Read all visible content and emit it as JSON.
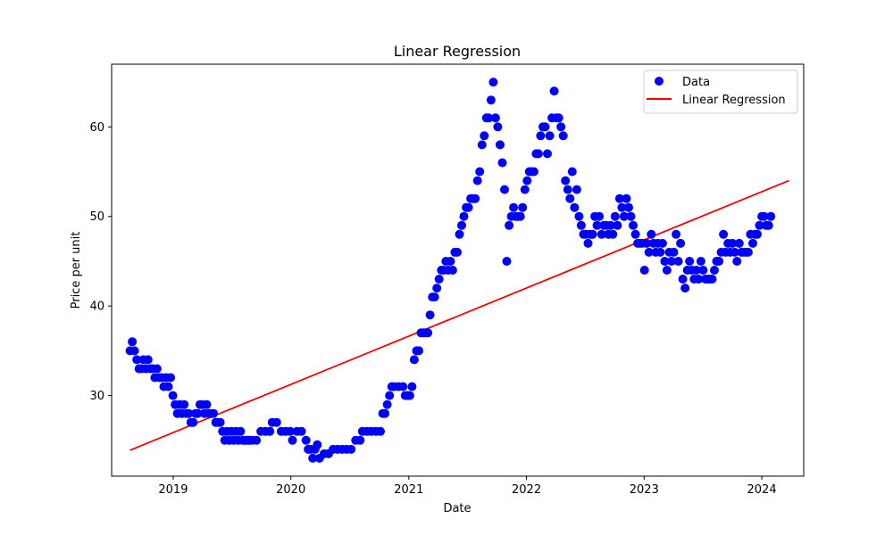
{
  "chart_data": {
    "type": "scatter",
    "title": "Linear Regression",
    "xlabel": "Date",
    "ylabel": "Price per unit",
    "xlim": [
      "2018-06-24",
      "2024-05-10"
    ],
    "ylim": [
      21,
      67
    ],
    "x_ticks": [
      {
        "value": "2019-01-01",
        "label": "2019"
      },
      {
        "value": "2020-01-01",
        "label": "2020"
      },
      {
        "value": "2021-01-01",
        "label": "2021"
      },
      {
        "value": "2022-01-01",
        "label": "2022"
      },
      {
        "value": "2023-01-01",
        "label": "2023"
      },
      {
        "value": "2024-01-01",
        "label": "2024"
      }
    ],
    "y_ticks": [
      30,
      40,
      50,
      60
    ],
    "grid": false,
    "legend": {
      "position": "top-right",
      "entries": [
        {
          "label": "Data",
          "kind": "marker",
          "color": "#0000ff"
        },
        {
          "label": "Linear Regression",
          "kind": "line",
          "color": "#ff0000"
        }
      ]
    },
    "series": [
      {
        "name": "Data",
        "kind": "scatter",
        "color": "#0000ff",
        "points": [
          [
            "2018-08-20",
            35
          ],
          [
            "2018-08-27",
            36
          ],
          [
            "2018-09-03",
            35
          ],
          [
            "2018-09-10",
            34
          ],
          [
            "2018-09-17",
            33
          ],
          [
            "2018-09-24",
            33
          ],
          [
            "2018-10-01",
            34
          ],
          [
            "2018-10-08",
            33
          ],
          [
            "2018-10-15",
            34
          ],
          [
            "2018-10-22",
            33
          ],
          [
            "2018-10-29",
            33
          ],
          [
            "2018-11-05",
            32
          ],
          [
            "2018-11-12",
            33
          ],
          [
            "2018-11-19",
            32
          ],
          [
            "2018-11-26",
            32
          ],
          [
            "2018-12-03",
            31
          ],
          [
            "2018-12-10",
            32
          ],
          [
            "2018-12-17",
            31
          ],
          [
            "2018-12-24",
            32
          ],
          [
            "2018-12-31",
            30
          ],
          [
            "2019-01-07",
            29
          ],
          [
            "2019-01-14",
            28
          ],
          [
            "2019-01-21",
            29
          ],
          [
            "2019-01-28",
            28
          ],
          [
            "2019-02-04",
            29
          ],
          [
            "2019-02-11",
            28
          ],
          [
            "2019-02-18",
            28
          ],
          [
            "2019-02-25",
            27
          ],
          [
            "2019-03-04",
            27
          ],
          [
            "2019-03-11",
            28
          ],
          [
            "2019-03-18",
            28
          ],
          [
            "2019-03-25",
            29
          ],
          [
            "2019-04-01",
            29
          ],
          [
            "2019-04-08",
            28
          ],
          [
            "2019-04-15",
            29
          ],
          [
            "2019-04-22",
            28
          ],
          [
            "2019-04-29",
            28
          ],
          [
            "2019-05-06",
            28
          ],
          [
            "2019-05-13",
            27
          ],
          [
            "2019-05-20",
            27
          ],
          [
            "2019-05-27",
            27
          ],
          [
            "2019-06-03",
            26
          ],
          [
            "2019-06-10",
            25
          ],
          [
            "2019-06-17",
            26
          ],
          [
            "2019-06-24",
            25
          ],
          [
            "2019-07-01",
            26
          ],
          [
            "2019-07-08",
            25
          ],
          [
            "2019-07-15",
            26
          ],
          [
            "2019-07-22",
            25
          ],
          [
            "2019-07-29",
            26
          ],
          [
            "2019-08-05",
            25
          ],
          [
            "2019-08-12",
            25
          ],
          [
            "2019-08-19",
            25
          ],
          [
            "2019-08-26",
            25
          ],
          [
            "2019-09-02",
            25
          ],
          [
            "2019-09-16",
            25
          ],
          [
            "2019-09-30",
            26
          ],
          [
            "2019-10-14",
            26
          ],
          [
            "2019-10-28",
            26
          ],
          [
            "2019-11-04",
            27
          ],
          [
            "2019-11-18",
            27
          ],
          [
            "2019-12-02",
            26
          ],
          [
            "2019-12-16",
            26
          ],
          [
            "2019-12-30",
            26
          ],
          [
            "2020-01-06",
            25
          ],
          [
            "2020-01-20",
            26
          ],
          [
            "2020-02-03",
            26
          ],
          [
            "2020-02-17",
            25
          ],
          [
            "2020-02-24",
            24
          ],
          [
            "2020-03-02",
            24
          ],
          [
            "2020-03-09",
            23
          ],
          [
            "2020-03-16",
            24
          ],
          [
            "2020-03-23",
            24.5
          ],
          [
            "2020-03-30",
            23
          ],
          [
            "2020-04-13",
            23.5
          ],
          [
            "2020-04-27",
            23.5
          ],
          [
            "2020-05-11",
            24
          ],
          [
            "2020-05-25",
            24
          ],
          [
            "2020-06-08",
            24
          ],
          [
            "2020-06-22",
            24
          ],
          [
            "2020-07-06",
            24
          ],
          [
            "2020-07-20",
            25
          ],
          [
            "2020-08-03",
            25
          ],
          [
            "2020-08-10",
            26
          ],
          [
            "2020-08-24",
            26
          ],
          [
            "2020-09-07",
            26
          ],
          [
            "2020-09-21",
            26
          ],
          [
            "2020-10-05",
            26
          ],
          [
            "2020-10-12",
            28
          ],
          [
            "2020-10-19",
            28
          ],
          [
            "2020-10-26",
            29
          ],
          [
            "2020-11-02",
            30
          ],
          [
            "2020-11-09",
            31
          ],
          [
            "2020-11-16",
            31
          ],
          [
            "2020-11-30",
            31
          ],
          [
            "2020-12-14",
            31
          ],
          [
            "2020-12-21",
            30
          ],
          [
            "2020-12-28",
            30
          ],
          [
            "2021-01-04",
            30
          ],
          [
            "2021-01-11",
            31
          ],
          [
            "2021-01-18",
            34
          ],
          [
            "2021-01-25",
            35
          ],
          [
            "2021-02-01",
            35
          ],
          [
            "2021-02-08",
            37
          ],
          [
            "2021-02-15",
            37
          ],
          [
            "2021-02-22",
            37
          ],
          [
            "2021-03-01",
            37
          ],
          [
            "2021-03-08",
            39
          ],
          [
            "2021-03-15",
            41
          ],
          [
            "2021-03-22",
            41
          ],
          [
            "2021-03-29",
            42
          ],
          [
            "2021-04-05",
            43
          ],
          [
            "2021-04-12",
            44
          ],
          [
            "2021-04-19",
            44
          ],
          [
            "2021-04-26",
            45
          ],
          [
            "2021-05-03",
            44
          ],
          [
            "2021-05-10",
            45
          ],
          [
            "2021-05-17",
            44
          ],
          [
            "2021-05-24",
            46
          ],
          [
            "2021-05-31",
            46
          ],
          [
            "2021-06-07",
            48
          ],
          [
            "2021-06-14",
            49
          ],
          [
            "2021-06-21",
            50
          ],
          [
            "2021-06-28",
            51
          ],
          [
            "2021-07-05",
            51
          ],
          [
            "2021-07-12",
            52
          ],
          [
            "2021-07-19",
            52
          ],
          [
            "2021-07-26",
            52
          ],
          [
            "2021-08-02",
            54
          ],
          [
            "2021-08-09",
            55
          ],
          [
            "2021-08-16",
            58
          ],
          [
            "2021-08-23",
            59
          ],
          [
            "2021-08-30",
            61
          ],
          [
            "2021-09-06",
            61
          ],
          [
            "2021-09-13",
            63
          ],
          [
            "2021-09-20",
            65
          ],
          [
            "2021-09-27",
            61
          ],
          [
            "2021-10-04",
            60
          ],
          [
            "2021-10-11",
            58
          ],
          [
            "2021-10-18",
            56
          ],
          [
            "2021-10-25",
            53
          ],
          [
            "2021-11-01",
            45
          ],
          [
            "2021-11-08",
            49
          ],
          [
            "2021-11-15",
            50
          ],
          [
            "2021-11-22",
            51
          ],
          [
            "2021-11-29",
            50
          ],
          [
            "2021-12-06",
            50
          ],
          [
            "2021-12-13",
            50
          ],
          [
            "2021-12-20",
            51
          ],
          [
            "2021-12-27",
            53
          ],
          [
            "2022-01-03",
            54
          ],
          [
            "2022-01-10",
            55
          ],
          [
            "2022-01-17",
            55
          ],
          [
            "2022-01-24",
            55
          ],
          [
            "2022-01-31",
            57
          ],
          [
            "2022-02-07",
            57
          ],
          [
            "2022-02-14",
            59
          ],
          [
            "2022-02-21",
            60
          ],
          [
            "2022-02-28",
            60
          ],
          [
            "2022-03-07",
            57
          ],
          [
            "2022-03-14",
            59
          ],
          [
            "2022-03-21",
            61
          ],
          [
            "2022-03-28",
            64
          ],
          [
            "2022-04-04",
            61
          ],
          [
            "2022-04-11",
            61
          ],
          [
            "2022-04-18",
            60
          ],
          [
            "2022-04-25",
            59
          ],
          [
            "2022-05-02",
            54
          ],
          [
            "2022-05-09",
            53
          ],
          [
            "2022-05-16",
            52
          ],
          [
            "2022-05-23",
            55
          ],
          [
            "2022-05-30",
            51
          ],
          [
            "2022-06-06",
            53
          ],
          [
            "2022-06-13",
            50
          ],
          [
            "2022-06-20",
            49
          ],
          [
            "2022-06-27",
            48
          ],
          [
            "2022-07-04",
            48
          ],
          [
            "2022-07-11",
            47
          ],
          [
            "2022-07-18",
            48
          ],
          [
            "2022-07-25",
            48
          ],
          [
            "2022-08-01",
            50
          ],
          [
            "2022-08-08",
            49
          ],
          [
            "2022-08-15",
            50
          ],
          [
            "2022-08-22",
            48
          ],
          [
            "2022-08-29",
            49
          ],
          [
            "2022-09-05",
            49
          ],
          [
            "2022-09-12",
            48
          ],
          [
            "2022-09-19",
            49
          ],
          [
            "2022-09-26",
            48
          ],
          [
            "2022-10-03",
            50
          ],
          [
            "2022-10-10",
            49
          ],
          [
            "2022-10-17",
            52
          ],
          [
            "2022-10-24",
            51
          ],
          [
            "2022-10-31",
            50
          ],
          [
            "2022-11-07",
            52
          ],
          [
            "2022-11-14",
            51
          ],
          [
            "2022-11-21",
            50
          ],
          [
            "2022-11-28",
            49
          ],
          [
            "2022-12-05",
            48
          ],
          [
            "2022-12-12",
            47
          ],
          [
            "2022-12-19",
            47
          ],
          [
            "2022-12-26",
            47
          ],
          [
            "2023-01-02",
            44
          ],
          [
            "2023-01-09",
            47
          ],
          [
            "2023-01-16",
            46
          ],
          [
            "2023-01-23",
            48
          ],
          [
            "2023-01-30",
            47
          ],
          [
            "2023-02-06",
            46
          ],
          [
            "2023-02-13",
            47
          ],
          [
            "2023-02-20",
            46
          ],
          [
            "2023-02-27",
            47
          ],
          [
            "2023-03-06",
            45
          ],
          [
            "2023-03-13",
            44
          ],
          [
            "2023-03-20",
            46
          ],
          [
            "2023-03-27",
            45
          ],
          [
            "2023-04-03",
            46
          ],
          [
            "2023-04-10",
            48
          ],
          [
            "2023-04-17",
            45
          ],
          [
            "2023-04-24",
            47
          ],
          [
            "2023-05-01",
            43
          ],
          [
            "2023-05-08",
            42
          ],
          [
            "2023-05-15",
            44
          ],
          [
            "2023-05-22",
            45
          ],
          [
            "2023-05-29",
            44
          ],
          [
            "2023-06-05",
            43
          ],
          [
            "2023-06-12",
            44
          ],
          [
            "2023-06-19",
            43
          ],
          [
            "2023-06-26",
            45
          ],
          [
            "2023-07-03",
            44
          ],
          [
            "2023-07-10",
            43
          ],
          [
            "2023-07-17",
            43
          ],
          [
            "2023-07-24",
            43
          ],
          [
            "2023-07-31",
            43
          ],
          [
            "2023-08-07",
            44
          ],
          [
            "2023-08-14",
            45
          ],
          [
            "2023-08-21",
            45
          ],
          [
            "2023-08-28",
            46
          ],
          [
            "2023-09-04",
            48
          ],
          [
            "2023-09-11",
            46
          ],
          [
            "2023-09-18",
            47
          ],
          [
            "2023-09-25",
            46
          ],
          [
            "2023-10-02",
            47
          ],
          [
            "2023-10-09",
            46
          ],
          [
            "2023-10-16",
            45
          ],
          [
            "2023-10-23",
            47
          ],
          [
            "2023-10-30",
            46
          ],
          [
            "2023-11-06",
            46
          ],
          [
            "2023-11-13",
            46
          ],
          [
            "2023-11-20",
            46
          ],
          [
            "2023-11-27",
            48
          ],
          [
            "2023-12-04",
            47
          ],
          [
            "2023-12-11",
            48
          ],
          [
            "2023-12-18",
            48
          ],
          [
            "2023-12-25",
            49
          ],
          [
            "2024-01-01",
            50
          ],
          [
            "2024-01-08",
            50
          ],
          [
            "2024-01-15",
            49
          ],
          [
            "2024-01-22",
            49
          ],
          [
            "2024-01-29",
            50
          ]
        ]
      },
      {
        "name": "Linear Regression",
        "kind": "line",
        "color": "#ff0000",
        "points": [
          [
            "2018-08-20",
            23.9
          ],
          [
            "2024-03-25",
            54
          ]
        ]
      }
    ]
  }
}
